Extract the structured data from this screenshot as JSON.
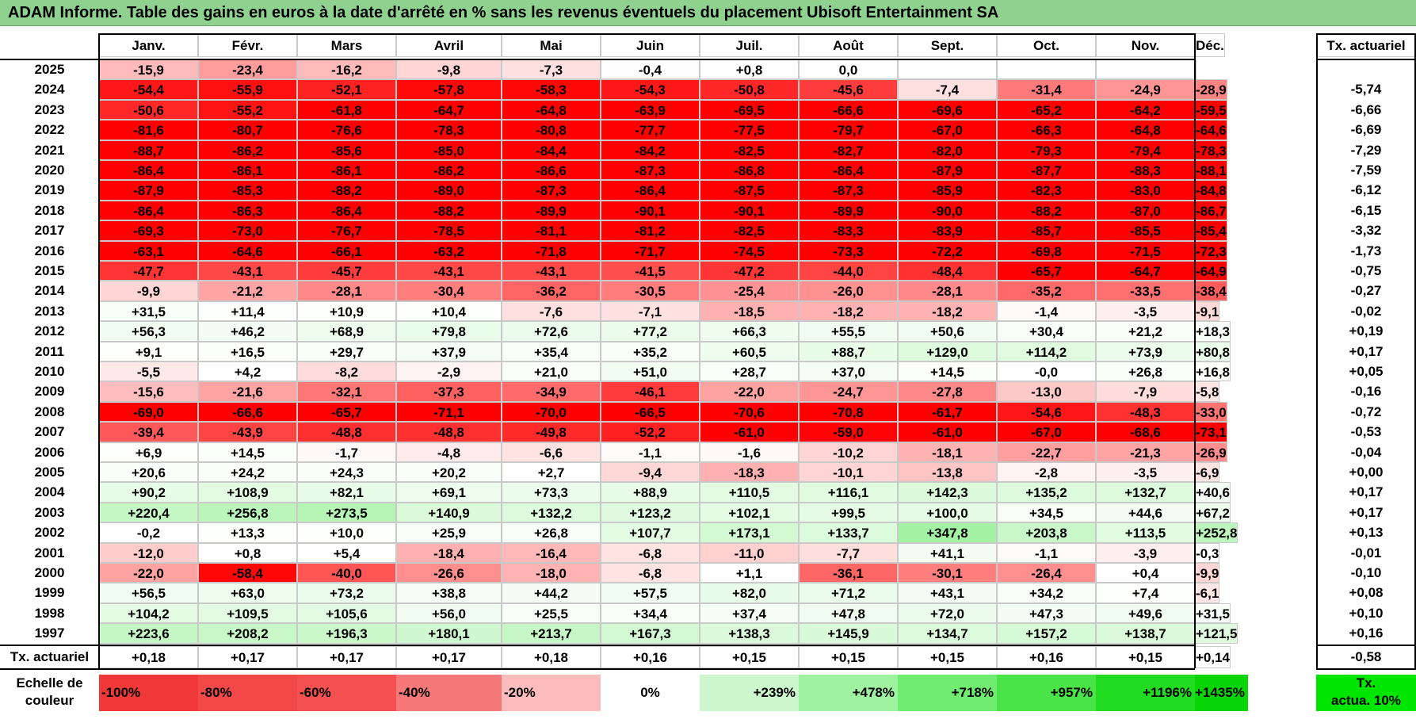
{
  "title": "ADAM Informe. Table des gains en euros à la date d'arrêté en % sans les revenus éventuels du placement Ubisoft Entertainment SA",
  "months": [
    "Janv.",
    "Févr.",
    "Mars",
    "Avril",
    "Mai",
    "Juin",
    "Juil.",
    "Août",
    "Sept.",
    "Oct.",
    "Nov.",
    "Déc."
  ],
  "rate_header": "Tx. actuariel",
  "chart_data": {
    "type": "heatmap",
    "title": "ADAM Informe. Table des gains en euros à la date d'arrêté en % sans les revenus éventuels du placement Ubisoft Entertainment SA",
    "columns": [
      "Janv.",
      "Févr.",
      "Mars",
      "Avril",
      "Mai",
      "Juin",
      "Juil.",
      "Août",
      "Sept.",
      "Oct.",
      "Nov.",
      "Déc."
    ],
    "rows": [
      {
        "year": "2025",
        "values": [
          "-15,9",
          "-23,4",
          "-16,2",
          "-9,8",
          "-7,3",
          "-0,4",
          "+0,8",
          "0,0",
          "",
          "",
          "",
          ""
        ],
        "rate": ""
      },
      {
        "year": "2024",
        "values": [
          "-54,4",
          "-55,9",
          "-52,1",
          "-57,8",
          "-58,3",
          "-54,3",
          "-50,8",
          "-45,6",
          "-7,4",
          "-31,4",
          "-24,9",
          "-28,9"
        ],
        "rate": "-5,74"
      },
      {
        "year": "2023",
        "values": [
          "-50,6",
          "-55,2",
          "-61,8",
          "-64,7",
          "-64,8",
          "-63,9",
          "-69,5",
          "-66,6",
          "-69,6",
          "-65,2",
          "-64,2",
          "-59,5"
        ],
        "rate": "-6,66"
      },
      {
        "year": "2022",
        "values": [
          "-81,6",
          "-80,7",
          "-76,6",
          "-78,3",
          "-80,8",
          "-77,7",
          "-77,5",
          "-79,7",
          "-67,0",
          "-66,3",
          "-64,8",
          "-64,6"
        ],
        "rate": "-6,69"
      },
      {
        "year": "2021",
        "values": [
          "-88,7",
          "-86,2",
          "-85,6",
          "-85,0",
          "-84,4",
          "-84,2",
          "-82,5",
          "-82,7",
          "-82,0",
          "-79,3",
          "-79,4",
          "-78,3"
        ],
        "rate": "-7,29"
      },
      {
        "year": "2020",
        "values": [
          "-86,4",
          "-86,1",
          "-86,1",
          "-86,2",
          "-86,6",
          "-87,3",
          "-86,8",
          "-86,4",
          "-87,9",
          "-87,7",
          "-88,3",
          "-88,1"
        ],
        "rate": "-7,59"
      },
      {
        "year": "2019",
        "values": [
          "-87,9",
          "-85,3",
          "-88,2",
          "-89,0",
          "-87,3",
          "-86,4",
          "-87,5",
          "-87,3",
          "-85,9",
          "-82,3",
          "-83,0",
          "-84,8"
        ],
        "rate": "-6,12"
      },
      {
        "year": "2018",
        "values": [
          "-86,4",
          "-86,3",
          "-86,4",
          "-88,2",
          "-89,9",
          "-90,1",
          "-90,1",
          "-89,9",
          "-90,0",
          "-88,2",
          "-87,0",
          "-86,7"
        ],
        "rate": "-6,15"
      },
      {
        "year": "2017",
        "values": [
          "-69,3",
          "-73,0",
          "-76,7",
          "-78,5",
          "-81,1",
          "-81,2",
          "-82,5",
          "-83,3",
          "-83,9",
          "-85,7",
          "-85,5",
          "-85,4"
        ],
        "rate": "-3,32"
      },
      {
        "year": "2016",
        "values": [
          "-63,1",
          "-64,6",
          "-66,1",
          "-63,2",
          "-71,8",
          "-71,7",
          "-74,5",
          "-73,3",
          "-72,2",
          "-69,8",
          "-71,5",
          "-72,3"
        ],
        "rate": "-1,73"
      },
      {
        "year": "2015",
        "values": [
          "-47,7",
          "-43,1",
          "-45,7",
          "-43,1",
          "-43,1",
          "-41,5",
          "-47,2",
          "-44,0",
          "-48,4",
          "-65,7",
          "-64,7",
          "-64,9"
        ],
        "rate": "-0,75"
      },
      {
        "year": "2014",
        "values": [
          "-9,9",
          "-21,2",
          "-28,1",
          "-30,4",
          "-36,2",
          "-30,5",
          "-25,4",
          "-26,0",
          "-28,1",
          "-35,2",
          "-33,5",
          "-38,4"
        ],
        "rate": "-0,27"
      },
      {
        "year": "2013",
        "values": [
          "+31,5",
          "+11,4",
          "+10,9",
          "+10,4",
          "-7,6",
          "-7,1",
          "-18,5",
          "-18,2",
          "-18,2",
          "-1,4",
          "-3,5",
          "-9,1"
        ],
        "rate": "-0,02"
      },
      {
        "year": "2012",
        "values": [
          "+56,3",
          "+46,2",
          "+68,9",
          "+79,8",
          "+72,6",
          "+77,2",
          "+66,3",
          "+55,5",
          "+50,6",
          "+30,4",
          "+21,2",
          "+18,3"
        ],
        "rate": "+0,19"
      },
      {
        "year": "2011",
        "values": [
          "+9,1",
          "+16,5",
          "+29,7",
          "+37,9",
          "+35,4",
          "+35,2",
          "+60,5",
          "+88,7",
          "+129,0",
          "+114,2",
          "+73,9",
          "+80,8"
        ],
        "rate": "+0,17"
      },
      {
        "year": "2010",
        "values": [
          "-5,5",
          "+4,2",
          "-8,2",
          "-2,9",
          "+21,0",
          "+51,0",
          "+28,7",
          "+37,0",
          "+14,5",
          "-0,0",
          "+26,8",
          "+16,8"
        ],
        "rate": "+0,05"
      },
      {
        "year": "2009",
        "values": [
          "-15,6",
          "-21,6",
          "-32,1",
          "-37,3",
          "-34,9",
          "-46,1",
          "-22,0",
          "-24,7",
          "-27,8",
          "-13,0",
          "-7,9",
          "-5,8"
        ],
        "rate": "-0,16"
      },
      {
        "year": "2008",
        "values": [
          "-69,0",
          "-66,6",
          "-65,7",
          "-71,1",
          "-70,0",
          "-66,5",
          "-70,6",
          "-70,8",
          "-61,7",
          "-54,6",
          "-48,3",
          "-33,0"
        ],
        "rate": "-0,72"
      },
      {
        "year": "2007",
        "values": [
          "-39,4",
          "-43,9",
          "-48,8",
          "-48,8",
          "-49,8",
          "-52,2",
          "-61,0",
          "-59,0",
          "-61,0",
          "-67,0",
          "-68,6",
          "-73,1"
        ],
        "rate": "-0,53"
      },
      {
        "year": "2006",
        "values": [
          "+6,9",
          "+14,5",
          "-1,7",
          "-4,8",
          "-6,6",
          "-1,1",
          "-1,6",
          "-10,2",
          "-18,1",
          "-22,7",
          "-21,3",
          "-26,9"
        ],
        "rate": "-0,04"
      },
      {
        "year": "2005",
        "values": [
          "+20,6",
          "+24,2",
          "+24,3",
          "+20,2",
          "+2,7",
          "-9,4",
          "-18,3",
          "-10,1",
          "-13,8",
          "-2,8",
          "-3,5",
          "-6,9"
        ],
        "rate": "+0,00"
      },
      {
        "year": "2004",
        "values": [
          "+90,2",
          "+108,9",
          "+82,1",
          "+69,1",
          "+73,3",
          "+88,9",
          "+110,5",
          "+116,1",
          "+142,3",
          "+135,2",
          "+132,7",
          "+40,6"
        ],
        "rate": "+0,17"
      },
      {
        "year": "2003",
        "values": [
          "+220,4",
          "+256,8",
          "+273,5",
          "+140,9",
          "+132,2",
          "+123,2",
          "+102,1",
          "+99,5",
          "+100,0",
          "+34,5",
          "+44,6",
          "+67,2"
        ],
        "rate": "+0,17"
      },
      {
        "year": "2002",
        "values": [
          "-0,2",
          "+13,3",
          "+10,0",
          "+25,9",
          "+26,8",
          "+107,7",
          "+173,1",
          "+133,7",
          "+347,8",
          "+203,8",
          "+113,5",
          "+252,8"
        ],
        "rate": "+0,13"
      },
      {
        "year": "2001",
        "values": [
          "-12,0",
          "+0,8",
          "+5,4",
          "-18,4",
          "-16,4",
          "-6,8",
          "-11,0",
          "-7,7",
          "+41,1",
          "-1,1",
          "-3,9",
          "-0,3"
        ],
        "rate": "-0,01"
      },
      {
        "year": "2000",
        "values": [
          "-22,0",
          "-58,4",
          "-40,0",
          "-26,6",
          "-18,0",
          "-6,8",
          "+1,1",
          "-36,1",
          "-30,1",
          "-26,4",
          "+0,4",
          "-9,9"
        ],
        "rate": "-0,10"
      },
      {
        "year": "1999",
        "values": [
          "+56,5",
          "+63,0",
          "+73,2",
          "+38,8",
          "+44,2",
          "+57,5",
          "+82,0",
          "+71,2",
          "+43,1",
          "+34,2",
          "+7,4",
          "-6,1"
        ],
        "rate": "+0,08"
      },
      {
        "year": "1998",
        "values": [
          "+104,2",
          "+109,5",
          "+105,6",
          "+56,0",
          "+25,5",
          "+34,4",
          "+37,4",
          "+47,8",
          "+72,0",
          "+47,3",
          "+49,6",
          "+31,5"
        ],
        "rate": "+0,10"
      },
      {
        "year": "1997",
        "values": [
          "+223,6",
          "+208,2",
          "+196,3",
          "+180,1",
          "+213,7",
          "+167,3",
          "+138,3",
          "+145,9",
          "+134,7",
          "+157,2",
          "+138,7",
          "+121,5"
        ],
        "rate": "+0,16"
      }
    ],
    "footer": {
      "label": "Tx. actuariel",
      "values": [
        "+0,18",
        "+0,17",
        "+0,17",
        "+0,17",
        "+0,18",
        "+0,16",
        "+0,15",
        "+0,15",
        "+0,15",
        "+0,16",
        "+0,15",
        "+0,14"
      ],
      "rate": "-0,58"
    },
    "scale": {
      "label_line1": "Echelle de",
      "label_line2": "couleur",
      "items": [
        "-100%",
        "-80%",
        "-60%",
        "-40%",
        "-20%",
        "0%",
        "+239%",
        "+478%",
        "+718%",
        "+957%",
        "+1196%",
        "+1435%"
      ],
      "end_line1": "Tx.",
      "end_line2": "actua. 10%"
    }
  },
  "colors": {
    "title_bg": "#8fd18f",
    "red": "#ff0000",
    "green": "#00e000",
    "white": "#ffffff"
  }
}
